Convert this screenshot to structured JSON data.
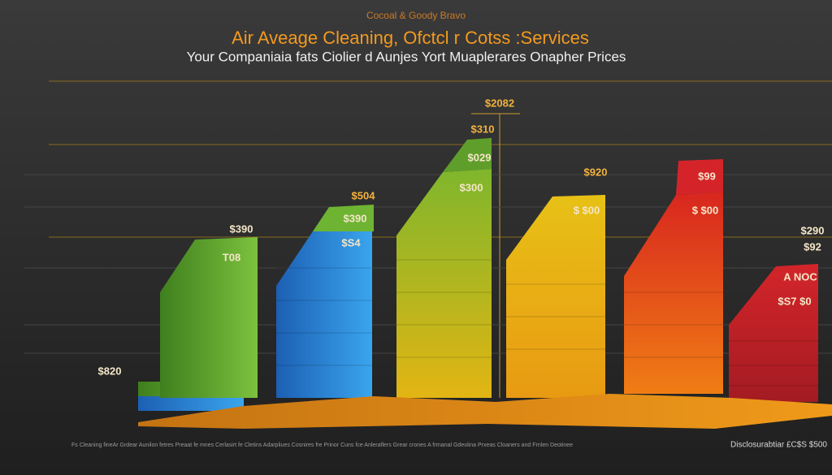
{
  "header": {
    "logo": "Cocoal & Goody Bravo",
    "title": "Air Aveage Cleaning, Ofctcl r Cotss :Services",
    "subtitle": "Your Companiaia fats Ciolier d Aunjes Yort Muaplerares Onapher Prices"
  },
  "labels": [
    "$820",
    "$390",
    "T08",
    "$504",
    "$390",
    "$S4",
    "$2082",
    "$310",
    "$029",
    "$300",
    "$920",
    "$ $00",
    "$99",
    "$ $00",
    "$290",
    "$92",
    "A NOC",
    "$S7 $0"
  ],
  "footer": {
    "fine_print": "Fs Cleaning fineAr Grdear Aunilon fetres Preaat fe mnes Cerlasirt fe Cletins Adarpliues Cosnires fre Prinor Cuns fce Anleraflers Grear crones A frrnanal Gdeolina Prxeas Cloaners and Frnlen Deotinee",
    "note": "Disclosurabtiar £C$S $500"
  }
}
